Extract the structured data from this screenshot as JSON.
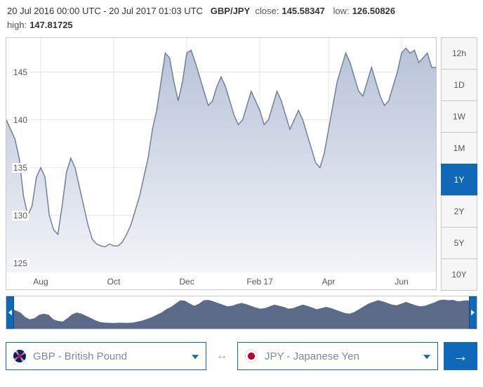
{
  "header": {
    "date_range": "20 Jul 2016 00:00 UTC - 20 Jul 2017 01:03 UTC",
    "pair": "GBP/JPY",
    "close_label": "close:",
    "close_value": "145.58347",
    "low_label": "low:",
    "low_value": "126.50826",
    "high_label": "high:",
    "high_value": "147.81725"
  },
  "chart": {
    "type": "area",
    "ylim": [
      124,
      148
    ],
    "ytick_labels": [
      "125",
      "130",
      "135",
      "140",
      "145"
    ],
    "ytick_values": [
      125,
      130,
      135,
      140,
      145
    ],
    "xlabels": [
      "Aug",
      "Oct",
      "Dec",
      "Feb 17",
      "Apr",
      "Jun"
    ],
    "xlabel_positions_pct": [
      8,
      25,
      42,
      59,
      75,
      92
    ],
    "line_color": "#6a7b99",
    "fill_top_color": "#b8c3d8",
    "fill_bottom_color": "#f2f4f8",
    "grid_color": "#e4e4e4",
    "background_color": "#ffffff",
    "series": [
      [
        0,
        140
      ],
      [
        2,
        138
      ],
      [
        3,
        136
      ],
      [
        4,
        132
      ],
      [
        5,
        130
      ],
      [
        6,
        131
      ],
      [
        7,
        134
      ],
      [
        8,
        135
      ],
      [
        9,
        134
      ],
      [
        10,
        130
      ],
      [
        11,
        128.5
      ],
      [
        12,
        128
      ],
      [
        13,
        131
      ],
      [
        14,
        134.5
      ],
      [
        15,
        136
      ],
      [
        16,
        135
      ],
      [
        17,
        133
      ],
      [
        18,
        131
      ],
      [
        19,
        129
      ],
      [
        20,
        127.5
      ],
      [
        21,
        127
      ],
      [
        22,
        126.8
      ],
      [
        23,
        126.7
      ],
      [
        24,
        127
      ],
      [
        25,
        126.8
      ],
      [
        26,
        126.8
      ],
      [
        27,
        127.2
      ],
      [
        28,
        128
      ],
      [
        29,
        129
      ],
      [
        30,
        130.5
      ],
      [
        31,
        132
      ],
      [
        32,
        134
      ],
      [
        33,
        136
      ],
      [
        34,
        139
      ],
      [
        35,
        141
      ],
      [
        36,
        144
      ],
      [
        37,
        147
      ],
      [
        38,
        146.5
      ],
      [
        39,
        144
      ],
      [
        40,
        142
      ],
      [
        41,
        144
      ],
      [
        42,
        147
      ],
      [
        43,
        147.3
      ],
      [
        44,
        146
      ],
      [
        45,
        144.5
      ],
      [
        46,
        143
      ],
      [
        47,
        141.5
      ],
      [
        48,
        142
      ],
      [
        49,
        143.5
      ],
      [
        50,
        144.5
      ],
      [
        51,
        143.5
      ],
      [
        52,
        142
      ],
      [
        53,
        140.5
      ],
      [
        54,
        139.5
      ],
      [
        55,
        140
      ],
      [
        56,
        141.5
      ],
      [
        57,
        143
      ],
      [
        58,
        142
      ],
      [
        59,
        141
      ],
      [
        60,
        139.5
      ],
      [
        61,
        140
      ],
      [
        62,
        141.5
      ],
      [
        63,
        143
      ],
      [
        64,
        142
      ],
      [
        65,
        140.5
      ],
      [
        66,
        139
      ],
      [
        67,
        140
      ],
      [
        68,
        141
      ],
      [
        69,
        140
      ],
      [
        70,
        138.5
      ],
      [
        71,
        137
      ],
      [
        72,
        135.5
      ],
      [
        73,
        135
      ],
      [
        74,
        136.5
      ],
      [
        75,
        139
      ],
      [
        76,
        141.5
      ],
      [
        77,
        144
      ],
      [
        78,
        145.5
      ],
      [
        79,
        147
      ],
      [
        80,
        146
      ],
      [
        81,
        144.5
      ],
      [
        82,
        143
      ],
      [
        83,
        142.5
      ],
      [
        84,
        144
      ],
      [
        85,
        145.5
      ],
      [
        86,
        144
      ],
      [
        87,
        142.5
      ],
      [
        88,
        141.5
      ],
      [
        89,
        142
      ],
      [
        90,
        143.5
      ],
      [
        91,
        145
      ],
      [
        92,
        147
      ],
      [
        93,
        147.5
      ],
      [
        94,
        147
      ],
      [
        95,
        147.3
      ],
      [
        96,
        146
      ],
      [
        97,
        146.5
      ],
      [
        98,
        147
      ],
      [
        99,
        145.5
      ],
      [
        100,
        145.5
      ]
    ]
  },
  "ranges": {
    "items": [
      "12h",
      "1D",
      "1W",
      "1M",
      "1Y",
      "2Y",
      "5Y",
      "10Y"
    ],
    "active": "1Y"
  },
  "overview": {
    "fill_color": "#5a6a88",
    "background_color": "#ffffff",
    "handle_color": "#1068b8"
  },
  "currencies": {
    "from": {
      "code": "GBP",
      "label": "GBP - British Pound",
      "flag": "gbp"
    },
    "to": {
      "code": "JPY",
      "label": "JPY - Japanese Yen",
      "flag": "jpy"
    }
  },
  "colors": {
    "accent": "#1068b8",
    "border": "#c7c7c7",
    "muted_text": "#7a8a99"
  }
}
